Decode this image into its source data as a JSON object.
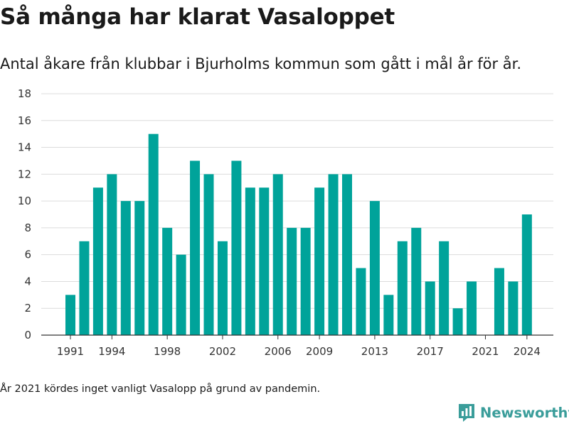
{
  "title": "Så många har klarat Vasaloppet",
  "subtitle": "Antal åkare från klubbar i Bjurholms kommun som gått i mål år för år.",
  "footnote": "År 2021 kördes inget vanligt Vasalopp på grund av pandemin.",
  "brand": {
    "name": "Newsworthy",
    "icon": "newsworthy-logo-icon",
    "color": "#3a9d9a"
  },
  "chart_data": {
    "type": "bar",
    "title": "",
    "xlabel": "",
    "ylabel": "",
    "color": "#00a39a",
    "grid": true,
    "ylim": [
      0,
      18
    ],
    "yticks": [
      0,
      2,
      4,
      6,
      8,
      10,
      12,
      14,
      16,
      18
    ],
    "xticks": [
      "1991",
      "1994",
      "1998",
      "2002",
      "2006",
      "2009",
      "2013",
      "2017",
      "2021",
      "2024"
    ],
    "categories": [
      "1991",
      "1992",
      "1993",
      "1994",
      "1995",
      "1996",
      "1997",
      "1998",
      "1999",
      "2000",
      "2001",
      "2002",
      "2003",
      "2004",
      "2005",
      "2006",
      "2007",
      "2008",
      "2009",
      "2010",
      "2011",
      "2012",
      "2013",
      "2014",
      "2015",
      "2016",
      "2017",
      "2018",
      "2019",
      "2020",
      "2021",
      "2022",
      "2023",
      "2024"
    ],
    "values": [
      3,
      7,
      11,
      12,
      10,
      10,
      15,
      8,
      6,
      13,
      12,
      7,
      13,
      11,
      11,
      12,
      8,
      8,
      11,
      12,
      12,
      5,
      10,
      3,
      7,
      8,
      4,
      7,
      2,
      4,
      0,
      5,
      4,
      9
    ]
  }
}
